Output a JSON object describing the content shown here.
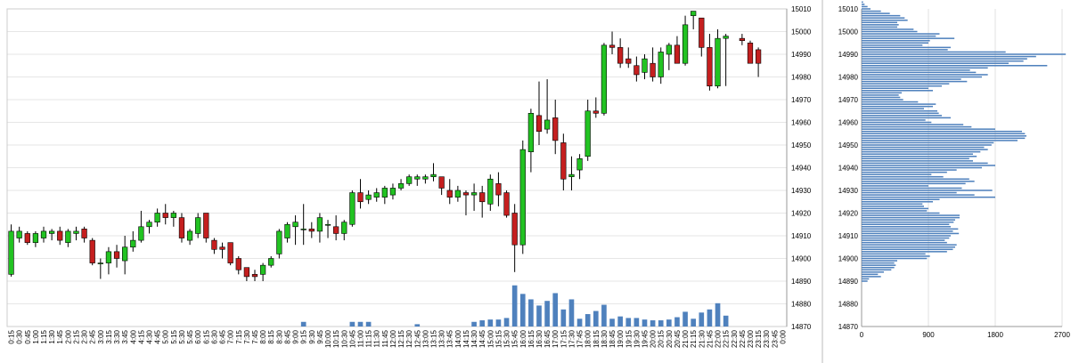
{
  "chart_data": [
    {
      "type": "candlestick",
      "grid": true,
      "ylim": [
        14870,
        15010
      ],
      "y_ticks": [
        14870,
        14880,
        14890,
        14900,
        14910,
        14920,
        14930,
        14940,
        14950,
        14960,
        14970,
        14980,
        14990,
        15000,
        15010
      ],
      "x_tick_labels": [
        "0:15",
        "0:30",
        "0:45",
        "1:00",
        "1:15",
        "1:30",
        "1:45",
        "2:00",
        "2:15",
        "2:30",
        "2:45",
        "3:00",
        "3:15",
        "3:30",
        "3:45",
        "4:00",
        "4:15",
        "4:30",
        "4:45",
        "5:00",
        "5:15",
        "5:30",
        "5:45",
        "6:00",
        "6:15",
        "6:30",
        "6:45",
        "7:00",
        "7:15",
        "7:30",
        "7:45",
        "8:00",
        "8:15",
        "8:30",
        "8:45",
        "9:00",
        "9:15",
        "9:30",
        "9:45",
        "10:00",
        "10:15",
        "10:30",
        "10:45",
        "11:00",
        "11:15",
        "11:30",
        "11:45",
        "12:00",
        "12:15",
        "12:30",
        "12:45",
        "13:00",
        "13:15",
        "13:30",
        "13:45",
        "14:00",
        "14:15",
        "14:30",
        "14:45",
        "15:00",
        "15:15",
        "15:30",
        "15:45",
        "16:00",
        "16:15",
        "16:30",
        "16:45",
        "17:00",
        "17:15",
        "17:30",
        "17:45",
        "18:00",
        "18:15",
        "18:30",
        "18:45",
        "19:00",
        "19:15",
        "19:30",
        "19:45",
        "20:00",
        "20:15",
        "20:30",
        "20:45",
        "21:00",
        "21:15",
        "21:30",
        "21:45",
        "22:00",
        "22:15",
        "22:30",
        "22:45",
        "23:00",
        "23:15",
        "23:30",
        "23:45",
        "0:00"
      ],
      "candles": [
        {
          "x": "0:15",
          "o": 14893,
          "h": 14915,
          "l": 14892,
          "c": 14912
        },
        {
          "x": "0:30",
          "o": 14909,
          "h": 14914,
          "l": 14907,
          "c": 14912
        },
        {
          "x": "0:45",
          "o": 14911,
          "h": 14912,
          "l": 14906,
          "c": 14907
        },
        {
          "x": "1:00",
          "o": 14907,
          "h": 14912,
          "l": 14905,
          "c": 14911
        },
        {
          "x": "1:15",
          "o": 14909,
          "h": 14914,
          "l": 14907,
          "c": 14912
        },
        {
          "x": "1:30",
          "o": 14911,
          "h": 14913,
          "l": 14908,
          "c": 14912
        },
        {
          "x": "1:45",
          "o": 14912,
          "h": 14914,
          "l": 14906,
          "c": 14908
        },
        {
          "x": "2:00",
          "o": 14907,
          "h": 14913,
          "l": 14905,
          "c": 14912
        },
        {
          "x": "2:15",
          "o": 14911,
          "h": 14914,
          "l": 14908,
          "c": 14912
        },
        {
          "x": "2:30",
          "o": 14913,
          "h": 14914,
          "l": 14907,
          "c": 14909
        },
        {
          "x": "2:45",
          "o": 14908,
          "h": 14909,
          "l": 14897,
          "c": 14898
        },
        {
          "x": "3:00",
          "o": 14898,
          "h": 14900,
          "l": 14891,
          "c": 14898
        },
        {
          "x": "3:15",
          "o": 14898,
          "h": 14905,
          "l": 14893,
          "c": 14903
        },
        {
          "x": "3:30",
          "o": 14903,
          "h": 14906,
          "l": 14896,
          "c": 14900
        },
        {
          "x": "3:45",
          "o": 14899,
          "h": 14910,
          "l": 14893,
          "c": 14905
        },
        {
          "x": "4:00",
          "o": 14905,
          "h": 14912,
          "l": 14903,
          "c": 14908
        },
        {
          "x": "4:15",
          "o": 14908,
          "h": 14921,
          "l": 14907,
          "c": 14914
        },
        {
          "x": "4:30",
          "o": 14914,
          "h": 14917,
          "l": 14911,
          "c": 14916
        },
        {
          "x": "4:45",
          "o": 14916,
          "h": 14922,
          "l": 14914,
          "c": 14920
        },
        {
          "x": "5:00",
          "o": 14920,
          "h": 14924,
          "l": 14915,
          "c": 14918
        },
        {
          "x": "5:15",
          "o": 14918,
          "h": 14921,
          "l": 14914,
          "c": 14920
        },
        {
          "x": "5:30",
          "o": 14918,
          "h": 14920,
          "l": 14907,
          "c": 14909
        },
        {
          "x": "5:45",
          "o": 14908,
          "h": 14913,
          "l": 14906,
          "c": 14912
        },
        {
          "x": "6:00",
          "o": 14911,
          "h": 14920,
          "l": 14909,
          "c": 14918
        },
        {
          "x": "6:15",
          "o": 14920,
          "h": 14920,
          "l": 14907,
          "c": 14909
        },
        {
          "x": "6:30",
          "o": 14908,
          "h": 14909,
          "l": 14902,
          "c": 14904
        },
        {
          "x": "6:45",
          "o": 14905,
          "h": 14907,
          "l": 14900,
          "c": 14904
        },
        {
          "x": "7:00",
          "o": 14907,
          "h": 14907,
          "l": 14897,
          "c": 14898
        },
        {
          "x": "7:15",
          "o": 14900,
          "h": 14901,
          "l": 14893,
          "c": 14895
        },
        {
          "x": "7:30",
          "o": 14896,
          "h": 14896,
          "l": 14890,
          "c": 14892
        },
        {
          "x": "7:45",
          "o": 14893,
          "h": 14895,
          "l": 14890,
          "c": 14892
        },
        {
          "x": "8:00",
          "o": 14893,
          "h": 14898,
          "l": 14890,
          "c": 14897
        },
        {
          "x": "8:15",
          "o": 14897,
          "h": 14901,
          "l": 14896,
          "c": 14900
        },
        {
          "x": "8:30",
          "o": 14902,
          "h": 14913,
          "l": 14900,
          "c": 14912
        },
        {
          "x": "8:45",
          "o": 14909,
          "h": 14916,
          "l": 14907,
          "c": 14915
        },
        {
          "x": "9:00",
          "o": 14914,
          "h": 14919,
          "l": 14906,
          "c": 14916
        },
        {
          "x": "9:15",
          "o": 14913,
          "h": 14924,
          "l": 14906,
          "c": 14913
        },
        {
          "x": "9:30",
          "o": 14913,
          "h": 14916,
          "l": 14909,
          "c": 14912
        },
        {
          "x": "9:45",
          "o": 14912,
          "h": 14920,
          "l": 14907,
          "c": 14918
        },
        {
          "x": "10:00",
          "o": 14915,
          "h": 14917,
          "l": 14909,
          "c": 14915
        },
        {
          "x": "10:15",
          "o": 14914,
          "h": 14919,
          "l": 14908,
          "c": 14911
        },
        {
          "x": "10:30",
          "o": 14911,
          "h": 14917,
          "l": 14908,
          "c": 14916
        },
        {
          "x": "10:45",
          "o": 14915,
          "h": 14930,
          "l": 14914,
          "c": 14929
        },
        {
          "x": "11:00",
          "o": 14929,
          "h": 14935,
          "l": 14922,
          "c": 14925
        },
        {
          "x": "11:15",
          "o": 14926,
          "h": 14930,
          "l": 14924,
          "c": 14928
        },
        {
          "x": "11:30",
          "o": 14927,
          "h": 14931,
          "l": 14925,
          "c": 14929
        },
        {
          "x": "11:45",
          "o": 14927,
          "h": 14932,
          "l": 14924,
          "c": 14931
        },
        {
          "x": "12:00",
          "o": 14928,
          "h": 14933,
          "l": 14926,
          "c": 14931
        },
        {
          "x": "12:15",
          "o": 14931,
          "h": 14935,
          "l": 14930,
          "c": 14933
        },
        {
          "x": "12:30",
          "o": 14933,
          "h": 14937,
          "l": 14932,
          "c": 14936
        },
        {
          "x": "12:45",
          "o": 14935,
          "h": 14937,
          "l": 14932,
          "c": 14936
        },
        {
          "x": "13:00",
          "o": 14935,
          "h": 14937,
          "l": 14933,
          "c": 14936
        },
        {
          "x": "13:15",
          "o": 14936,
          "h": 14942,
          "l": 14934,
          "c": 14937
        },
        {
          "x": "13:30",
          "o": 14936,
          "h": 14936,
          "l": 14928,
          "c": 14931
        },
        {
          "x": "13:45",
          "o": 14930,
          "h": 14935,
          "l": 14924,
          "c": 14927
        },
        {
          "x": "14:00",
          "o": 14927,
          "h": 14932,
          "l": 14925,
          "c": 14930
        },
        {
          "x": "14:15",
          "o": 14929,
          "h": 14930,
          "l": 14919,
          "c": 14928
        },
        {
          "x": "14:30",
          "o": 14928,
          "h": 14933,
          "l": 14921,
          "c": 14929
        },
        {
          "x": "14:45",
          "o": 14929,
          "h": 14932,
          "l": 14918,
          "c": 14925
        },
        {
          "x": "15:00",
          "o": 14924,
          "h": 14937,
          "l": 14921,
          "c": 14935
        },
        {
          "x": "15:15",
          "o": 14933,
          "h": 14938,
          "l": 14923,
          "c": 14928
        },
        {
          "x": "15:30",
          "o": 14929,
          "h": 14930,
          "l": 14918,
          "c": 14919
        },
        {
          "x": "15:45",
          "o": 14920,
          "h": 14924,
          "l": 14894,
          "c": 14906
        },
        {
          "x": "16:00",
          "o": 14906,
          "h": 14952,
          "l": 14902,
          "c": 14948
        },
        {
          "x": "16:15",
          "o": 14947,
          "h": 14966,
          "l": 14938,
          "c": 14964
        },
        {
          "x": "16:30",
          "o": 14963,
          "h": 14978,
          "l": 14950,
          "c": 14956
        },
        {
          "x": "16:45",
          "o": 14957,
          "h": 14979,
          "l": 14955,
          "c": 14961
        },
        {
          "x": "17:00",
          "o": 14962,
          "h": 14970,
          "l": 14946,
          "c": 14952
        },
        {
          "x": "17:15",
          "o": 14951,
          "h": 14955,
          "l": 14930,
          "c": 14935
        },
        {
          "x": "17:30",
          "o": 14936,
          "h": 14945,
          "l": 14930,
          "c": 14937
        },
        {
          "x": "17:45",
          "o": 14939,
          "h": 14946,
          "l": 14935,
          "c": 14944
        },
        {
          "x": "18:00",
          "o": 14945,
          "h": 14970,
          "l": 14943,
          "c": 14965
        },
        {
          "x": "18:15",
          "o": 14965,
          "h": 14971,
          "l": 14962,
          "c": 14964
        },
        {
          "x": "18:30",
          "o": 14964,
          "h": 14995,
          "l": 14963,
          "c": 14994
        },
        {
          "x": "18:45",
          "o": 14994,
          "h": 15000,
          "l": 14990,
          "c": 14993
        },
        {
          "x": "19:00",
          "o": 14993,
          "h": 14997,
          "l": 14984,
          "c": 14986
        },
        {
          "x": "19:15",
          "o": 14988,
          "h": 14993,
          "l": 14984,
          "c": 14986
        },
        {
          "x": "19:30",
          "o": 14985,
          "h": 14989,
          "l": 14978,
          "c": 14981
        },
        {
          "x": "19:45",
          "o": 14982,
          "h": 14990,
          "l": 14979,
          "c": 14988
        },
        {
          "x": "20:00",
          "o": 14986,
          "h": 14993,
          "l": 14978,
          "c": 14980
        },
        {
          "x": "20:15",
          "o": 14980,
          "h": 14993,
          "l": 14977,
          "c": 14991
        },
        {
          "x": "20:30",
          "o": 14990,
          "h": 14995,
          "l": 14983,
          "c": 14994
        },
        {
          "x": "20:45",
          "o": 14994,
          "h": 14998,
          "l": 14986,
          "c": 14986
        },
        {
          "x": "21:00",
          "o": 14986,
          "h": 15007,
          "l": 14985,
          "c": 15003
        },
        {
          "x": "21:15",
          "o": 15007,
          "h": 15009,
          "l": 15001,
          "c": 15009
        },
        {
          "x": "21:30",
          "o": 15006,
          "h": 15006,
          "l": 14989,
          "c": 14993
        },
        {
          "x": "21:45",
          "o": 14993,
          "h": 14999,
          "l": 14974,
          "c": 14976
        },
        {
          "x": "22:00",
          "o": 14976,
          "h": 15001,
          "l": 14975,
          "c": 14997
        },
        {
          "x": "22:15",
          "o": 14997,
          "h": 14999,
          "l": 14976,
          "c": 14998
        },
        {
          "x": "22:45",
          "o": 14997,
          "h": 14999,
          "l": 14994,
          "c": 14996
        },
        {
          "x": "23:00",
          "o": 14995,
          "h": 14996,
          "l": 14986,
          "c": 14986
        },
        {
          "x": "23:15",
          "o": 14992,
          "h": 14993,
          "l": 14980,
          "c": 14986
        }
      ],
      "volume": [
        {
          "x": "9:15",
          "v": 0.6
        },
        {
          "x": "10:45",
          "v": 0.6
        },
        {
          "x": "11:00",
          "v": 0.6
        },
        {
          "x": "11:15",
          "v": 0.6
        },
        {
          "x": "12:45",
          "v": 0.3
        },
        {
          "x": "14:30",
          "v": 0.6
        },
        {
          "x": "14:45",
          "v": 0.8
        },
        {
          "x": "15:00",
          "v": 0.9
        },
        {
          "x": "15:15",
          "v": 0.9
        },
        {
          "x": "15:30",
          "v": 1.1
        },
        {
          "x": "15:45",
          "v": 5.3
        },
        {
          "x": "16:00",
          "v": 4.2
        },
        {
          "x": "16:15",
          "v": 3.5
        },
        {
          "x": "16:30",
          "v": 2.7
        },
        {
          "x": "16:45",
          "v": 3.3
        },
        {
          "x": "17:00",
          "v": 4.3
        },
        {
          "x": "17:15",
          "v": 2.2
        },
        {
          "x": "17:30",
          "v": 3.5
        },
        {
          "x": "17:45",
          "v": 1.0
        },
        {
          "x": "18:00",
          "v": 1.6
        },
        {
          "x": "18:15",
          "v": 2.0
        },
        {
          "x": "18:30",
          "v": 2.8
        },
        {
          "x": "18:45",
          "v": 1.0
        },
        {
          "x": "19:00",
          "v": 1.3
        },
        {
          "x": "19:15",
          "v": 1.1
        },
        {
          "x": "19:30",
          "v": 1.1
        },
        {
          "x": "19:45",
          "v": 0.9
        },
        {
          "x": "20:00",
          "v": 0.8
        },
        {
          "x": "20:15",
          "v": 0.8
        },
        {
          "x": "20:30",
          "v": 0.9
        },
        {
          "x": "20:45",
          "v": 1.2
        },
        {
          "x": "21:00",
          "v": 1.9
        },
        {
          "x": "21:15",
          "v": 1.0
        },
        {
          "x": "21:30",
          "v": 1.8
        },
        {
          "x": "21:45",
          "v": 2.2
        },
        {
          "x": "22:00",
          "v": 3.0
        },
        {
          "x": "22:15",
          "v": 1.4
        }
      ],
      "colors": {
        "up": "#22c322",
        "down": "#c51f1f",
        "outline": "#000000",
        "volume": "#4f81bd",
        "grid": "#e6e6e6"
      }
    },
    {
      "type": "bar",
      "orientation": "horizontal",
      "grid": true,
      "xlim": [
        0,
        2700
      ],
      "x_ticks": [
        0,
        900,
        1800,
        2700
      ],
      "ylim": [
        14870,
        15010
      ],
      "y_ticks": [
        14870,
        14880,
        14890,
        14900,
        14910,
        14920,
        14930,
        14940,
        14950,
        14960,
        14970,
        14980,
        14990,
        15000,
        15010
      ],
      "bar_color": "#4f81bd",
      "price_bins": {
        "start": 14890,
        "step": 1,
        "values": [
          80,
          100,
          260,
          220,
          300,
          400,
          440,
          460,
          440,
          480,
          880,
          920,
          860,
          1150,
          1230,
          1260,
          1280,
          1150,
          1120,
          1180,
          1200,
          1310,
          1230,
          1300,
          1200,
          1180,
          1240,
          1260,
          1320,
          1320,
          1050,
          880,
          900,
          840,
          820,
          960,
          1050,
          1800,
          1520,
          1280,
          1760,
          1350,
          900,
          1400,
          1520,
          1450,
          1100,
          940,
          1150,
          1280,
          1620,
          1800,
          1700,
          1500,
          1450,
          1550,
          1500,
          1600,
          1700,
          1650,
          1750,
          1780,
          2100,
          2200,
          2220,
          2200,
          2160,
          1800,
          1480,
          1370,
          940,
          860,
          1200,
          1080,
          1040,
          1020,
          840,
          960,
          1000,
          760,
          560,
          520,
          500,
          540,
          960,
          900,
          1080,
          1180,
          1420,
          1340,
          1620,
          1700,
          1540,
          1460,
          1700,
          2500,
          1980,
          2180,
          2230,
          2350,
          2750,
          1940,
          1160,
          1200,
          820,
          900,
          920,
          1250,
          1000,
          1050,
          750,
          700,
          480,
          500,
          480,
          620,
          580,
          520,
          380,
          260,
          120,
          80,
          40,
          20
        ]
      }
    }
  ]
}
